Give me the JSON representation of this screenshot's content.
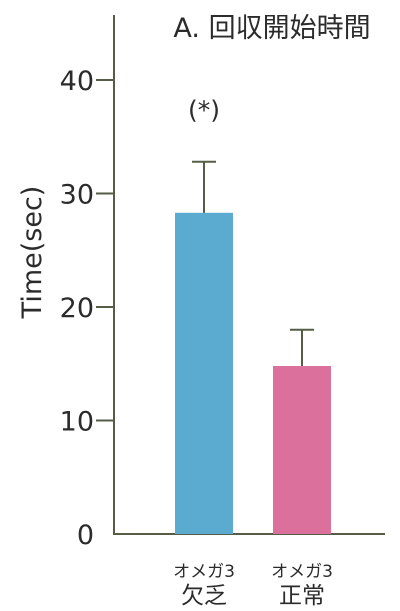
{
  "chart_data": {
    "type": "bar",
    "title": "A. 回収開始時間",
    "xlabel": "",
    "ylabel": "Time(sec)",
    "ylim": [
      0,
      45
    ],
    "yticks": [
      0,
      10,
      20,
      30,
      40
    ],
    "grid": false,
    "categories": [
      {
        "line1": "オメガ3",
        "line2": "欠乏"
      },
      {
        "line1": "オメガ3",
        "line2": "正常"
      }
    ],
    "values": [
      28.3,
      14.8
    ],
    "errors": [
      4.5,
      3.2
    ],
    "colors": [
      "#5aabcf",
      "#db709c"
    ],
    "annotation": "(*)",
    "annotation_value": 37.5,
    "annotation_category": 0,
    "axis_color": "#565d46",
    "text_color": "#2b2b2b"
  }
}
